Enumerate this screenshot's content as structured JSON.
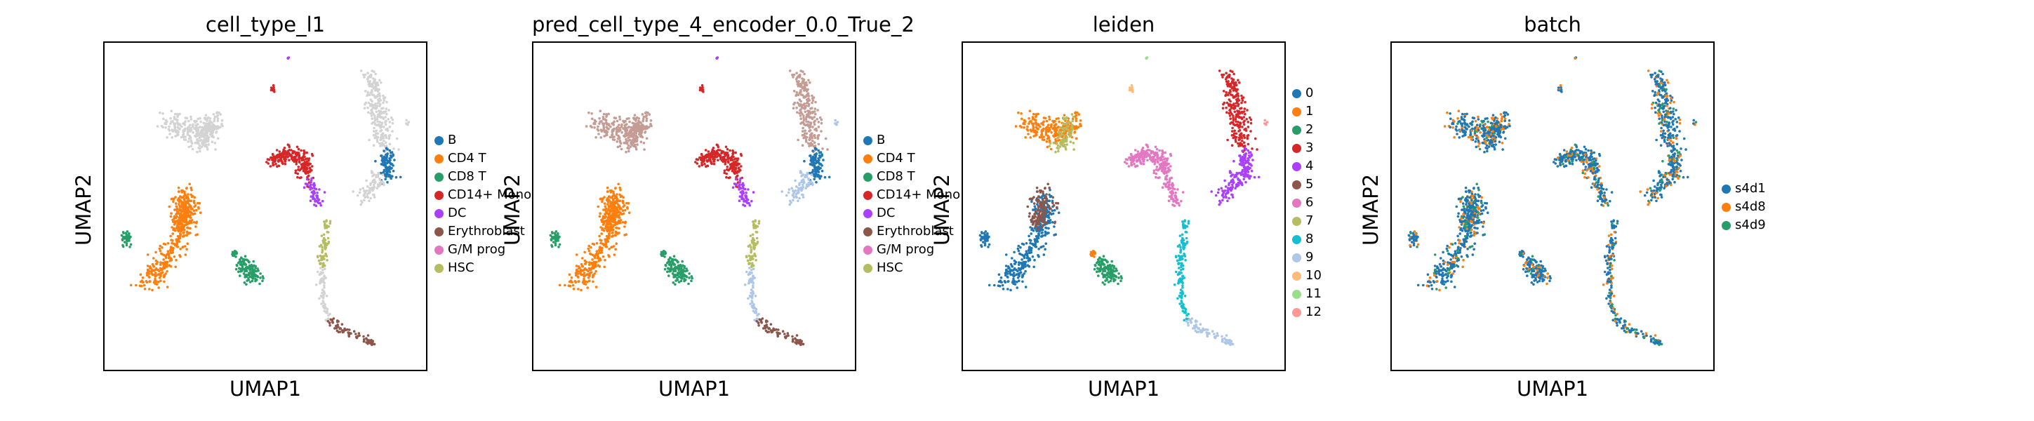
{
  "colors": {
    "B": "#1f77b4",
    "CD4 T": "#ff7f0e",
    "CD8 T": "#279e68",
    "CD14+ Mono": "#d62728",
    "DC": "#aa40fc",
    "Erythroblast": "#8c564b",
    "G/M prog": "#e377c2",
    "HSC": "#b5bd61",
    "grey": "#d3d3d3",
    "leiden": [
      "#1f77b4",
      "#ff7f0e",
      "#279e68",
      "#d62728",
      "#aa40fc",
      "#8c564b",
      "#e377c2",
      "#b5bd61",
      "#17becf",
      "#aec7e8",
      "#ffbb78",
      "#98df8a",
      "#ff9896"
    ],
    "batch": [
      "#1f77b4",
      "#ff7f0e",
      "#279e68"
    ]
  },
  "chart_data": [
    {
      "type": "scatter",
      "title": "cell_type_l1",
      "xlabel": "UMAP1",
      "ylabel": "UMAP2",
      "legend": [
        "B",
        "CD4 T",
        "CD8 T",
        "CD14+ Mono",
        "DC",
        "Erythroblast",
        "G/M prog",
        "HSC"
      ],
      "legend_position": "right"
    },
    {
      "type": "scatter",
      "title": "pred_cell_type_4_encoder_0.0_True_2",
      "xlabel": "UMAP1",
      "ylabel": "UMAP2",
      "legend": [
        "B",
        "CD4 T",
        "CD8 T",
        "CD14+ Mono",
        "DC",
        "Erythroblast",
        "G/M prog",
        "HSC"
      ],
      "legend_position": "right"
    },
    {
      "type": "scatter",
      "title": "leiden",
      "xlabel": "UMAP1",
      "ylabel": "UMAP2",
      "legend": [
        "0",
        "1",
        "2",
        "3",
        "4",
        "5",
        "6",
        "7",
        "8",
        "9",
        "10",
        "11",
        "12"
      ],
      "legend_position": "right"
    },
    {
      "type": "scatter",
      "title": "batch",
      "xlabel": "UMAP1",
      "ylabel": "UMAP2",
      "legend": [
        "s4d1",
        "s4d8",
        "s4d9"
      ],
      "legend_position": "right"
    }
  ]
}
